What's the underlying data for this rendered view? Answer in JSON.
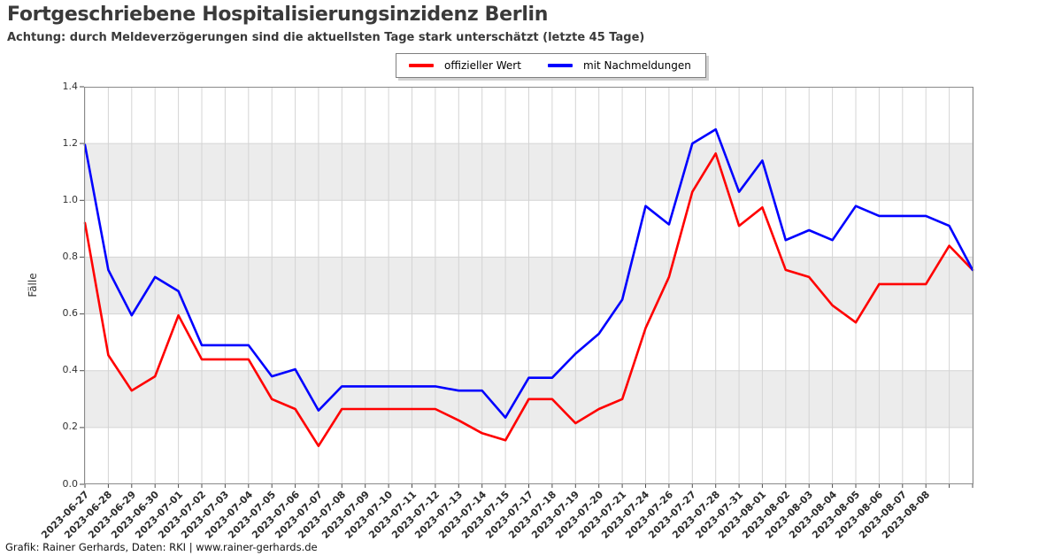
{
  "title": "Fortgeschriebene Hospitalisierungsinzidenz Berlin",
  "subtitle": "Achtung: durch Meldeverzögerungen sind die aktuellsten Tage stark unterschätzt (letzte 45 Tage)",
  "footer": "Grafik: Rainer Gerhards, Daten: RKI | www.rainer-gerhards.de",
  "legend": [
    {
      "label": "offizieller Wert",
      "color": "#ff0000"
    },
    {
      "label": "mit Nachmeldungen",
      "color": "#0000ff"
    }
  ],
  "chart_data": {
    "type": "line",
    "title": "Fortgeschriebene Hospitalisierungsinzidenz Berlin",
    "subtitle": "Achtung: durch Meldeverzögerungen sind die aktuellsten Tage stark unterschätzt (letzte 45 Tage)",
    "xlabel": "",
    "ylabel": "Fälle",
    "ylim": [
      0,
      1.4
    ],
    "yticks": [
      0.0,
      0.2,
      0.4,
      0.6,
      0.8,
      1.0,
      1.2,
      1.4
    ],
    "grid": true,
    "shaded_bands": [
      [
        0.2,
        0.4
      ],
      [
        0.6,
        0.8
      ],
      [
        1.0,
        1.2
      ]
    ],
    "band_color": "#ececec",
    "legend_position": "top center",
    "x_labels": [
      "2023-06-27",
      "2023-06-28",
      "2023-06-29",
      "2023-06-30",
      "2023-07-01",
      "2023-07-02",
      "2023-07-03",
      "2023-07-04",
      "2023-07-05",
      "2023-07-06",
      "2023-07-07",
      "2023-07-08",
      "2023-07-09",
      "2023-07-10",
      "2023-07-11",
      "2023-07-12",
      "2023-07-13",
      "2023-07-14",
      "2023-07-15",
      "2023-07-17",
      "2023-07-18",
      "2023-07-19",
      "2023-07-20",
      "2023-07-21",
      "2023-07-24",
      "2023-07-26",
      "2023-07-27",
      "2023-07-28",
      "2023-07-31",
      "2023-08-01",
      "2023-08-02",
      "2023-08-03",
      "2023-08-04",
      "2023-08-05",
      "2023-08-06",
      "2023-08-07",
      "2023-08-08",
      "",
      ""
    ],
    "series": [
      {
        "name": "offizieller Wert",
        "color": "#ff0000",
        "values": [
          0.92,
          0.455,
          0.33,
          0.38,
          0.595,
          0.44,
          0.44,
          0.44,
          0.3,
          0.265,
          0.135,
          0.265,
          0.265,
          0.265,
          0.265,
          0.265,
          0.225,
          0.18,
          0.155,
          0.3,
          0.3,
          0.215,
          0.265,
          0.3,
          0.55,
          0.73,
          1.03,
          1.165,
          0.91,
          0.975,
          0.755,
          0.73,
          0.63,
          0.57,
          0.705,
          0.705,
          0.705,
          0.84,
          0.755
        ]
      },
      {
        "name": "mit Nachmeldungen",
        "color": "#0000ff",
        "values": [
          1.195,
          0.755,
          0.595,
          0.73,
          0.68,
          0.49,
          0.49,
          0.49,
          0.38,
          0.405,
          0.26,
          0.345,
          0.345,
          0.345,
          0.345,
          0.345,
          0.33,
          0.33,
          0.235,
          0.375,
          0.375,
          0.46,
          0.53,
          0.65,
          0.98,
          0.915,
          1.2,
          1.25,
          1.03,
          1.14,
          0.86,
          0.895,
          0.86,
          0.98,
          0.945,
          0.945,
          0.945,
          0.91,
          0.755
        ]
      }
    ]
  }
}
